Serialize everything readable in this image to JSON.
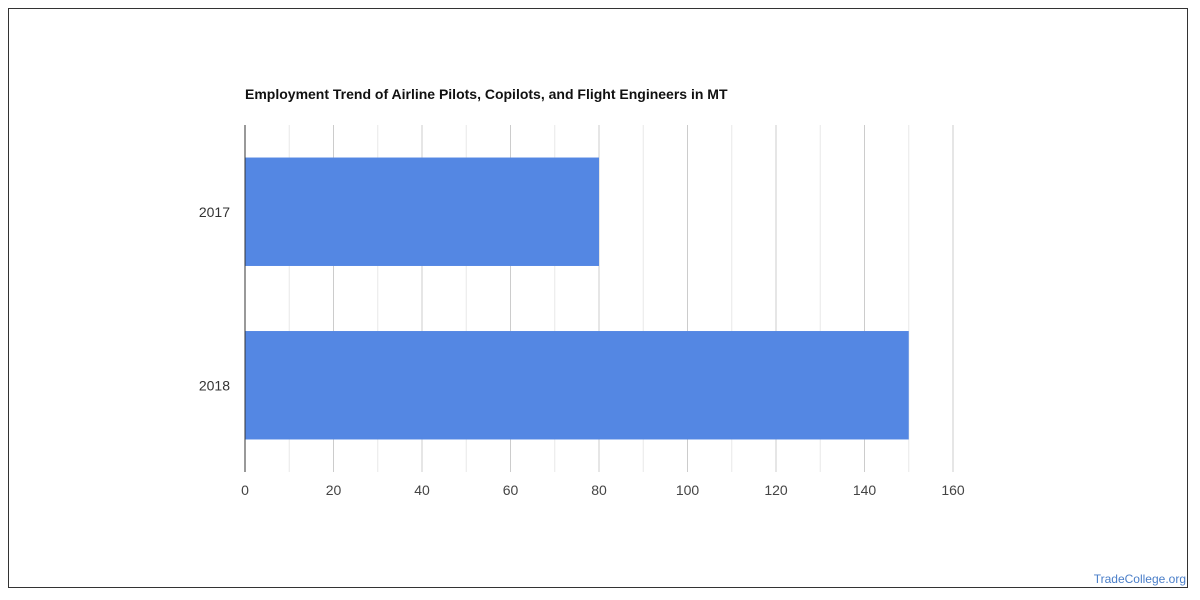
{
  "chart_data": {
    "type": "bar",
    "orientation": "horizontal",
    "title": "Employment Trend of Airline Pilots, Copilots, and Flight Engineers in MT",
    "categories": [
      "2017",
      "2018"
    ],
    "values": [
      80,
      150
    ],
    "xlim": [
      0,
      160
    ],
    "xticks": [
      "0",
      "20",
      "40",
      "60",
      "80",
      "100",
      "120",
      "140",
      "160"
    ],
    "grid": true,
    "bar_color": "#5487e3"
  },
  "watermark": "TradeCollege.org"
}
